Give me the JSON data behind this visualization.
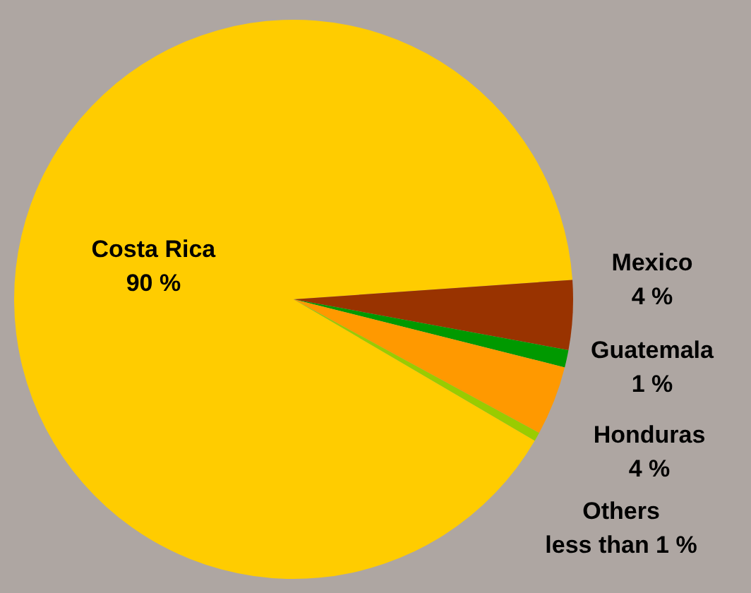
{
  "chart_data": {
    "type": "pie",
    "categories": [
      "Costa Rica",
      "Mexico",
      "Guatemala",
      "Honduras",
      "Others"
    ],
    "values": [
      90,
      4,
      1,
      4,
      0.5
    ],
    "value_labels": [
      "90 %",
      "4 %",
      "1 %",
      "4 %",
      "less than 1 %"
    ],
    "colors": [
      "#ffcc00",
      "#993300",
      "#009900",
      "#ff9900",
      "#99cc00"
    ],
    "legend": false
  }
}
